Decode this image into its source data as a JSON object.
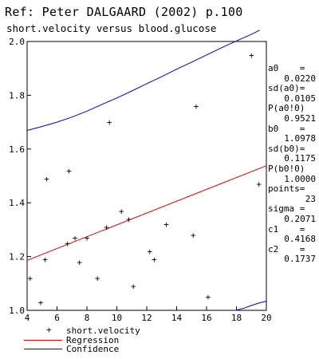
{
  "header": {
    "ref": "Ref: Peter DALGAARD (2002) p.100",
    "subtitle": "short.velocity versus blood.glucose"
  },
  "stats": [
    {
      "key": "a0",
      "val": "0.0220",
      "eq": "    ="
    },
    {
      "key": "sd(a0)",
      "val": "0.0105",
      "eq": "="
    },
    {
      "key": "P(a0!0)",
      "val": "0.9521",
      "eq": ""
    },
    {
      "key": "b0",
      "val": "1.0978",
      "eq": "    ="
    },
    {
      "key": "sd(b0)",
      "val": "0.1175",
      "eq": "="
    },
    {
      "key": "P(b0!0)",
      "val": "1.0000",
      "eq": ""
    },
    {
      "key": "points",
      "val": "23",
      "eq": "="
    },
    {
      "key": "sigma",
      "val": "0.2071",
      "eq": " ="
    },
    {
      "key": "c1",
      "val": "0.4168",
      "eq": "    ="
    },
    {
      "key": "c2",
      "val": "0.1737",
      "eq": "    ="
    }
  ],
  "legend": {
    "points_label": "short.velocity",
    "regression_label": "Regression",
    "confidence_label": "Confidence"
  },
  "chart_data": {
    "type": "scatter",
    "title": "short.velocity versus blood.glucose",
    "xlim": [
      4,
      20
    ],
    "ylim": [
      1.0,
      2.0
    ],
    "x_ticks": [
      "4",
      "6",
      "8",
      "10",
      "12",
      "14",
      "16",
      "18",
      "20"
    ],
    "y_ticks": [
      "1.0",
      "1.2",
      "1.4",
      "1.6",
      "1.8",
      "2.0"
    ],
    "grid": false,
    "colors": {
      "regression": "#e00000",
      "confidence": "#0000cc",
      "points": "#000000"
    },
    "series": [
      {
        "name": "short.velocity",
        "kind": "points",
        "x": [
          4.2,
          4.9,
          5.2,
          5.3,
          6.7,
          6.8,
          7.2,
          7.5,
          8.0,
          8.7,
          9.3,
          9.5,
          10.3,
          10.8,
          11.1,
          12.2,
          12.5,
          13.3,
          15.1,
          15.3,
          16.1,
          19.0,
          19.5
        ],
        "y": [
          1.12,
          1.03,
          1.19,
          1.49,
          1.25,
          1.52,
          1.27,
          1.18,
          1.27,
          1.12,
          1.31,
          1.7,
          1.37,
          1.34,
          1.09,
          1.22,
          1.19,
          1.32,
          1.28,
          1.76,
          1.05,
          1.95,
          1.47
        ]
      },
      {
        "name": "Regression",
        "kind": "line",
        "x": [
          4,
          20
        ],
        "y": [
          1.186,
          1.538
        ]
      },
      {
        "name": "Confidence",
        "kind": "upper",
        "x": [
          4,
          5,
          6,
          7,
          8,
          9,
          10,
          11,
          12,
          13,
          14,
          15,
          16,
          17,
          18,
          19,
          19.55
        ],
        "y": [
          1.669,
          1.684,
          1.7,
          1.719,
          1.741,
          1.766,
          1.79,
          1.816,
          1.843,
          1.869,
          1.897,
          1.923,
          1.95,
          1.977,
          2.002,
          2.027,
          2.042
        ]
      },
      {
        "name": "Confidence",
        "kind": "lower",
        "x": [
          17.95,
          18.5,
          19,
          19.5,
          20
        ],
        "y": [
          1.0,
          1.008,
          1.018,
          1.027,
          1.034
        ]
      }
    ]
  }
}
